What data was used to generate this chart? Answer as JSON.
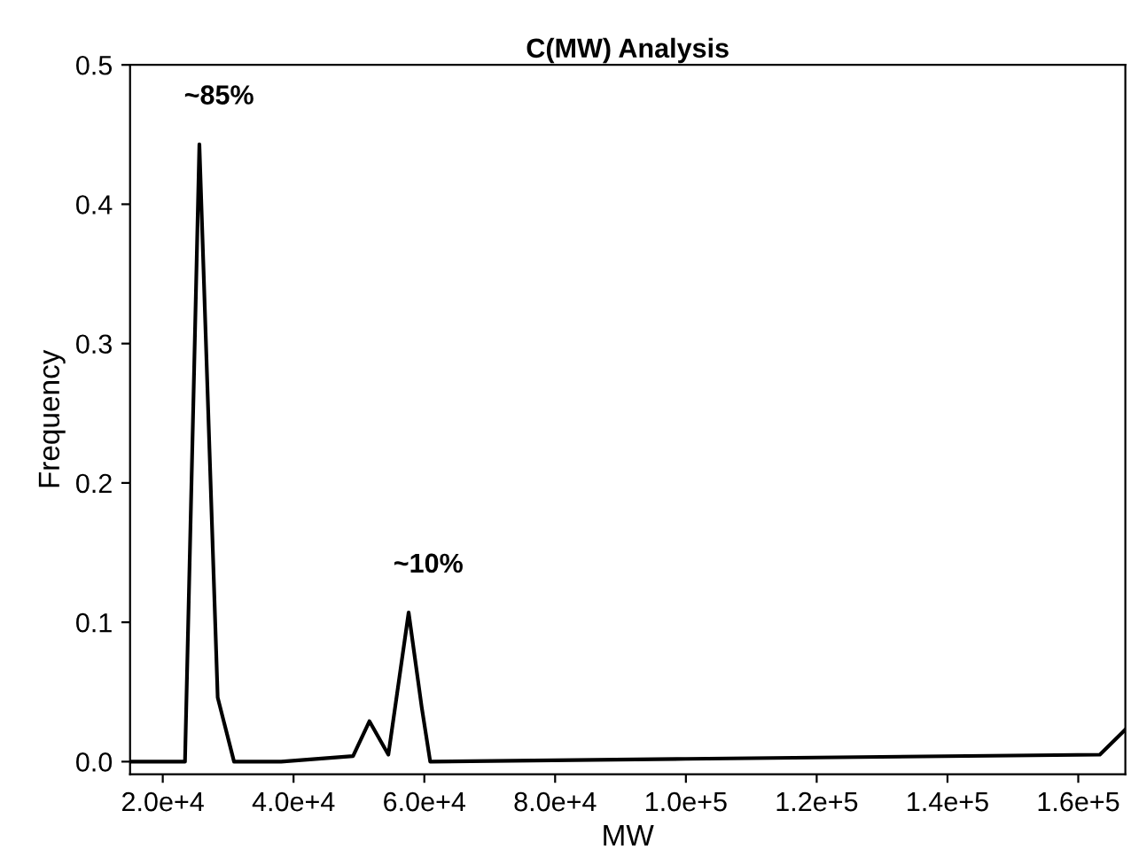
{
  "chart_data": {
    "type": "line",
    "title": "C(MW) Analysis",
    "xlabel": "MW",
    "ylabel": "Frequency",
    "x": [
      15000,
      23400,
      25600,
      28400,
      30900,
      38100,
      49100,
      51600,
      54500,
      57600,
      59600,
      60900,
      100000,
      163300,
      167200
    ],
    "series": [
      {
        "color": "#000000",
        "values": [
          0,
          0,
          0.443,
          0.046,
          0,
          0,
          0.004,
          0.029,
          0.005,
          0.107,
          0.039,
          0,
          0.002,
          0.005,
          0.023
        ]
      }
    ],
    "xlim": [
      15000,
      167200
    ],
    "ylim": [
      -0.009,
      0.5
    ],
    "xticks": [
      {
        "value": 20000,
        "label": "2.0e+4"
      },
      {
        "value": 40000,
        "label": "4.0e+4"
      },
      {
        "value": 60000,
        "label": "6.0e+4"
      },
      {
        "value": 80000,
        "label": "8.0e+4"
      },
      {
        "value": 100000,
        "label": "1.0e+5"
      },
      {
        "value": 120000,
        "label": "1.2e+5"
      },
      {
        "value": 140000,
        "label": "1.4e+5"
      },
      {
        "value": 160000,
        "label": "1.6e+5"
      }
    ],
    "yticks": [
      {
        "value": 0,
        "label": "0.0"
      },
      0.1,
      0.2,
      0.3,
      0.4,
      0.5
    ],
    "annotations": [
      {
        "text": "~85%",
        "x": 25600,
        "y": 0.443
      },
      {
        "text": "~10%",
        "x": 57600,
        "y": 0.107
      }
    ],
    "grid": false,
    "legend": false,
    "marker": "none",
    "line_style": "solid"
  }
}
